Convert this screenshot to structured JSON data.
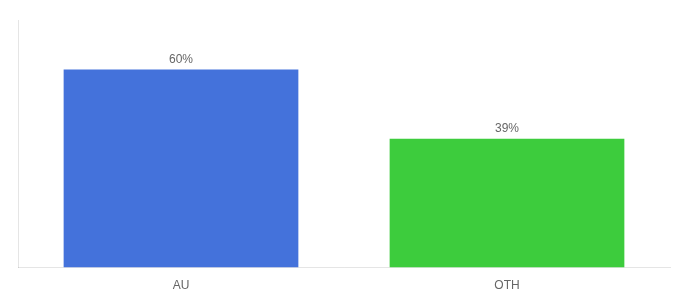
{
  "chart_data": {
    "type": "bar",
    "categories": [
      "AU",
      "OTH"
    ],
    "values": [
      60,
      39
    ],
    "value_labels": [
      "60%",
      "39%"
    ],
    "data_labels": true,
    "colors": [
      "#4472db",
      "#3dcc3d"
    ],
    "ylim": [
      0,
      75
    ],
    "tick_labels": "x",
    "grid": false
  }
}
